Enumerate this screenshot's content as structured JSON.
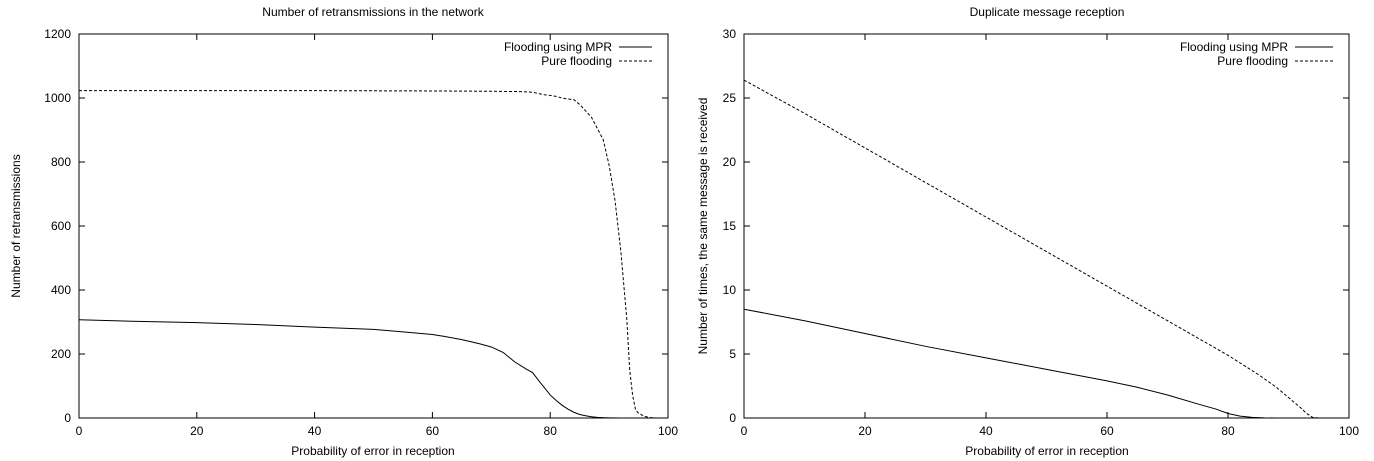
{
  "chart_data": [
    {
      "type": "line",
      "title": "Number of retransmissions in the network",
      "xlabel": "Probability of error in reception",
      "ylabel": "Number of retransmissions",
      "xlim": [
        0,
        100
      ],
      "ylim": [
        0,
        1200
      ],
      "xticks": [
        0,
        20,
        40,
        60,
        80,
        100
      ],
      "yticks": [
        0,
        200,
        400,
        600,
        800,
        1000,
        1200
      ],
      "grid": false,
      "legend_position": "top-right",
      "series": [
        {
          "name": "Flooding using MPR",
          "style": "solid",
          "x": [
            0,
            10,
            20,
            30,
            40,
            50,
            55,
            60,
            62,
            65,
            68,
            70,
            72,
            74,
            76,
            77,
            78,
            79,
            80,
            81,
            82,
            83,
            84,
            85,
            86,
            87,
            88,
            89,
            90,
            92,
            94,
            96,
            98,
            100
          ],
          "y": [
            307,
            302,
            298,
            292,
            284,
            277,
            269,
            261,
            255,
            245,
            232,
            222,
            205,
            175,
            152,
            142,
            118,
            95,
            72,
            55,
            40,
            28,
            18,
            11,
            7,
            4,
            2,
            1,
            0.5,
            0,
            0,
            0,
            0,
            0
          ]
        },
        {
          "name": "Pure flooding",
          "style": "dashed",
          "x": [
            0,
            20,
            40,
            60,
            70,
            75,
            76,
            77,
            78,
            79,
            80,
            81,
            82,
            83,
            84,
            85,
            86,
            87,
            88,
            89,
            90,
            91,
            92,
            93,
            93.5,
            94,
            94.5,
            95,
            96,
            97,
            98,
            100
          ],
          "y": [
            1023,
            1023,
            1023,
            1022,
            1021,
            1020,
            1019,
            1018,
            1014,
            1010,
            1008,
            1005,
            1000,
            997,
            995,
            980,
            960,
            940,
            905,
            870,
            790,
            680,
            520,
            310,
            150,
            70,
            25,
            15,
            5,
            1,
            0,
            0
          ]
        }
      ]
    },
    {
      "type": "line",
      "title": "Duplicate message reception",
      "xlabel": "Probability of error in reception",
      "ylabel": "Number of times, the same message is received",
      "xlim": [
        0,
        100
      ],
      "ylim": [
        0,
        30
      ],
      "xticks": [
        0,
        20,
        40,
        60,
        80,
        100
      ],
      "yticks": [
        0,
        5,
        10,
        15,
        20,
        25,
        30
      ],
      "grid": false,
      "legend_position": "top-right",
      "series": [
        {
          "name": "Flooding using MPR",
          "style": "solid",
          "x": [
            0,
            10,
            20,
            30,
            40,
            50,
            60,
            65,
            70,
            75,
            78,
            80,
            82,
            84,
            86,
            88,
            90,
            95,
            100
          ],
          "y": [
            8.5,
            7.6,
            6.6,
            5.6,
            4.7,
            3.8,
            2.9,
            2.4,
            1.8,
            1.1,
            0.7,
            0.35,
            0.15,
            0.05,
            0.01,
            0,
            0,
            0,
            0
          ]
        },
        {
          "name": "Pure flooding",
          "style": "dashed",
          "x": [
            0,
            10,
            20,
            30,
            40,
            50,
            60,
            70,
            80,
            85,
            88,
            90,
            92,
            93,
            94,
            95,
            100
          ],
          "y": [
            26.4,
            23.8,
            21.1,
            18.4,
            15.7,
            13.0,
            10.3,
            7.6,
            4.9,
            3.4,
            2.4,
            1.6,
            0.8,
            0.35,
            0.05,
            0,
            0
          ]
        }
      ]
    }
  ]
}
